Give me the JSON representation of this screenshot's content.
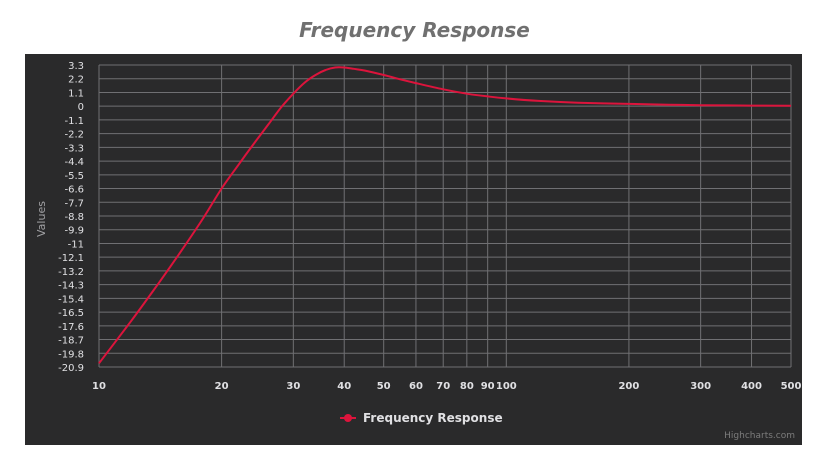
{
  "chart_data": {
    "type": "line",
    "title": "Frequency Response",
    "ylabel": "Values",
    "x_scale": "log",
    "xlim": [
      10,
      500
    ],
    "ylim": [
      -20.9,
      3.3
    ],
    "x_ticks": [
      10,
      20,
      30,
      40,
      50,
      60,
      70,
      80,
      90,
      100,
      200,
      300,
      400,
      500
    ],
    "y_ticks": [
      "3.3",
      "2.2",
      "1.1",
      "0",
      "-1.1",
      "-2.2",
      "-3.3",
      "-4.4",
      "-5.5",
      "-6.6",
      "-7.7",
      "-8.8",
      "-9.9",
      "-11",
      "-12.1",
      "-13.2",
      "-14.3",
      "-15.4",
      "-16.5",
      "-17.6",
      "-18.7",
      "-19.8",
      "-20.9"
    ],
    "grid": true,
    "legend_position": "bottom-center",
    "series": [
      {
        "name": "Frequency Response",
        "color": "#dc143c",
        "x": [
          10,
          12,
          14,
          16,
          18,
          20,
          22,
          24,
          26,
          28,
          30,
          32,
          34,
          36,
          38,
          40,
          42,
          45,
          50,
          55,
          60,
          70,
          80,
          90,
          100,
          120,
          150,
          200,
          250,
          300,
          400,
          500
        ],
        "y": [
          -20.6,
          -17.2,
          -14.2,
          -11.5,
          -9.0,
          -6.6,
          -4.7,
          -3.0,
          -1.5,
          -0.1,
          1.0,
          1.9,
          2.5,
          2.9,
          3.1,
          3.1,
          3.0,
          2.85,
          2.5,
          2.15,
          1.85,
          1.35,
          1.0,
          0.78,
          0.62,
          0.42,
          0.28,
          0.18,
          0.12,
          0.08,
          0.05,
          0.03
        ]
      }
    ]
  },
  "credits": "Highcharts.com"
}
